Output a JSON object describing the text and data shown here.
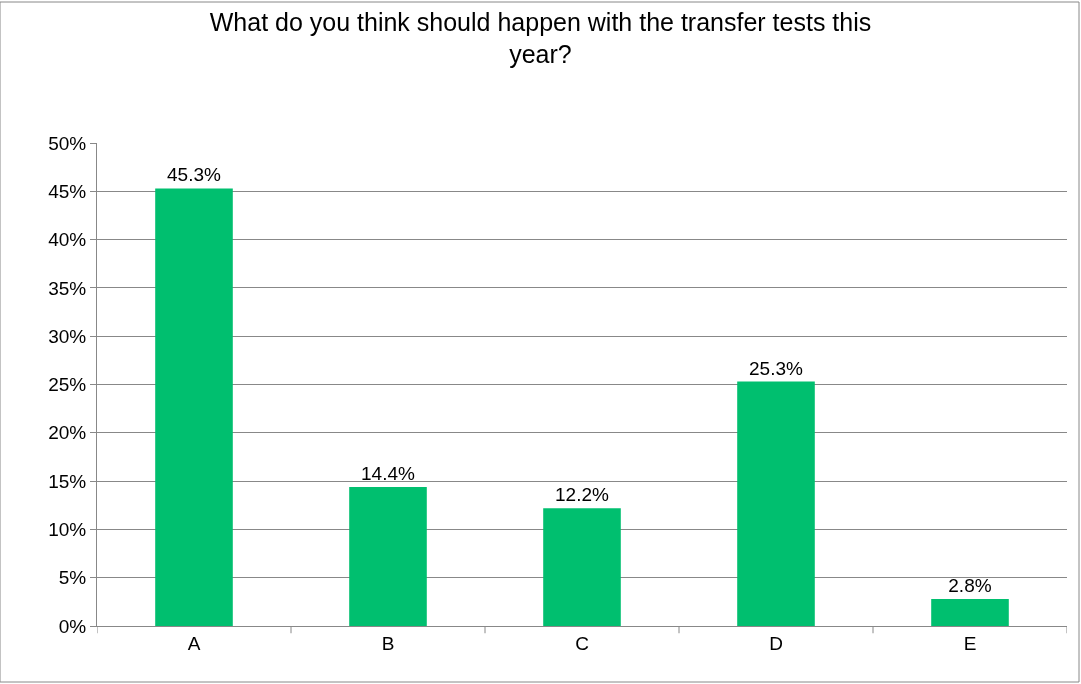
{
  "chart_data": {
    "type": "bar",
    "title": "What do you think should happen with the transfer tests this year?",
    "categories": [
      "A",
      "B",
      "C",
      "D",
      "E"
    ],
    "values": [
      45.3,
      14.4,
      12.2,
      25.3,
      2.8
    ],
    "value_labels": [
      "45.3%",
      "14.4%",
      "12.2%",
      "25.3%",
      "2.8%"
    ],
    "color": "#00bf6f",
    "ylim": [
      0,
      50
    ],
    "yticks": [
      {
        "value": 0,
        "label": "0%"
      },
      {
        "value": 5,
        "label": "5%"
      },
      {
        "value": 10,
        "label": "10%"
      },
      {
        "value": 15,
        "label": "15%"
      },
      {
        "value": 20,
        "label": "20%"
      },
      {
        "value": 25,
        "label": "25%"
      },
      {
        "value": 30,
        "label": "30%"
      },
      {
        "value": 35,
        "label": "35%"
      },
      {
        "value": 40,
        "label": "40%"
      },
      {
        "value": 45,
        "label": "45%"
      },
      {
        "value": 50,
        "label": "50%"
      }
    ],
    "grid": "y"
  }
}
